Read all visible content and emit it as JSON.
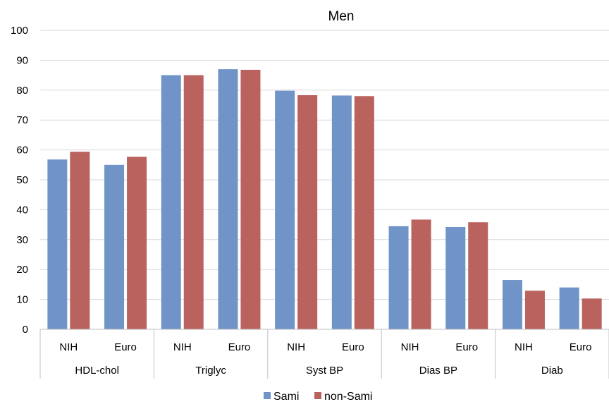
{
  "colors": {
    "series_0": "#7094C8",
    "series_1": "#B9625E",
    "grid": "#D9D9D9",
    "axis": "#BFBFBF"
  },
  "chart_data": {
    "type": "bar",
    "title": "Men",
    "xlabel": "",
    "ylabel": "",
    "ylim": [
      0,
      100
    ],
    "yticks": [
      0,
      10,
      20,
      30,
      40,
      50,
      60,
      70,
      80,
      90,
      100
    ],
    "grid": true,
    "legend_position": "bottom",
    "groups": [
      "HDL-chol",
      "Triglyc",
      "Syst BP",
      "Dias BP",
      "Diab"
    ],
    "subcategories": [
      "NIH",
      "Euro"
    ],
    "categories": [
      "NIH",
      "Euro",
      "NIH",
      "Euro",
      "NIH",
      "Euro",
      "NIH",
      "Euro",
      "NIH",
      "Euro"
    ],
    "series": [
      {
        "name": "Sami",
        "values": [
          56.8,
          55.0,
          85.0,
          87.0,
          79.8,
          78.2,
          34.5,
          34.2,
          16.5,
          14.0
        ]
      },
      {
        "name": "non-Sami",
        "values": [
          59.4,
          57.7,
          85.0,
          86.8,
          78.3,
          78.0,
          36.7,
          35.8,
          12.9,
          10.3
        ]
      }
    ]
  }
}
